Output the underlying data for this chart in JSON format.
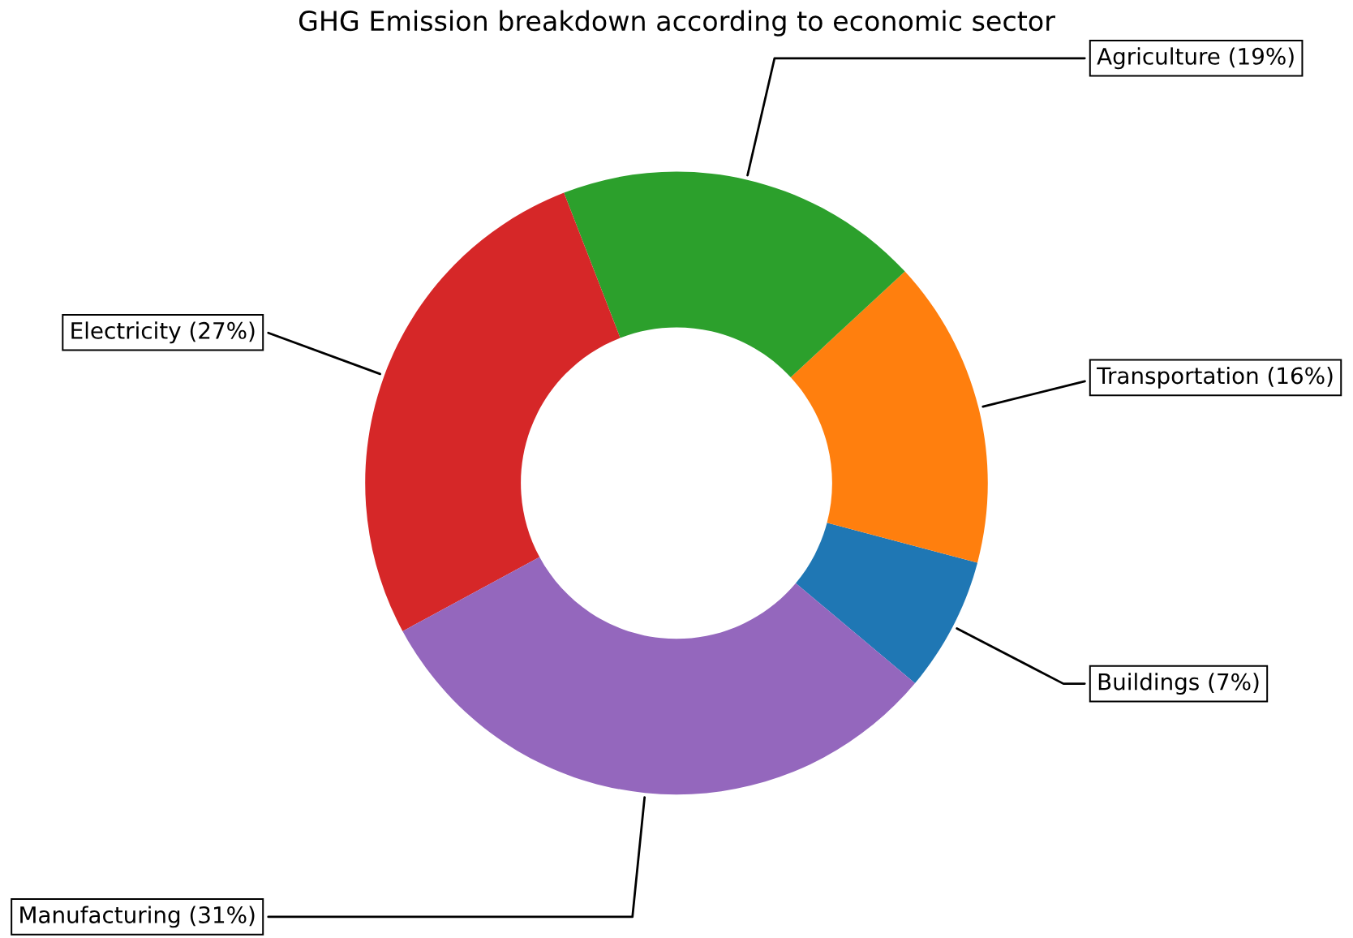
{
  "chart_data": {
    "type": "donut",
    "title": "GHG Emission breakdown according to economic sector",
    "categories": [
      "Buildings (7%)",
      "Transportation (16%)",
      "Agriculture (19%)",
      "Electricity (27%)",
      "Manufacturing (31%)"
    ],
    "values": [
      7,
      16,
      19,
      27,
      31
    ],
    "colors": [
      "#1f77b4",
      "#ff7f0e",
      "#2ca02c",
      "#d62728",
      "#9467bd"
    ],
    "legend": false
  }
}
